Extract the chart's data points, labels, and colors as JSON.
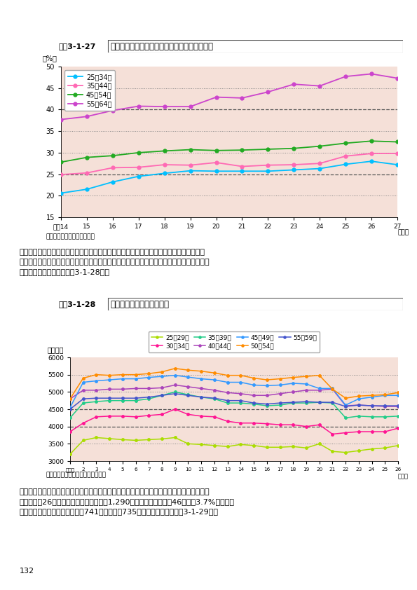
{
  "chart1": {
    "title_box": "図表3-1-27",
    "title_text": "年齢階級別非正規の職員・従業員の割合の推移",
    "ylabel": "（%）",
    "source": "資料：総務省「労働力調査」",
    "ylim": [
      15,
      50
    ],
    "yticks": [
      15,
      20,
      25,
      30,
      35,
      40,
      45,
      50
    ],
    "xlabels": [
      "平成14",
      "15",
      "16",
      "17",
      "18",
      "19",
      "20",
      "21",
      "22",
      "23",
      "24",
      "25",
      "26",
      "27"
    ],
    "xvals": [
      14,
      15,
      16,
      17,
      18,
      19,
      20,
      21,
      22,
      23,
      24,
      25,
      26,
      27
    ],
    "year_label": "（年）",
    "series_order": [
      "25〜34歳",
      "35〜44歳",
      "45〜54歳",
      "55〜64歳"
    ],
    "series": {
      "25〜34歳": {
        "color": "#00BFFF",
        "values": [
          20.6,
          21.5,
          23.2,
          24.5,
          25.2,
          25.8,
          25.7,
          25.7,
          25.7,
          26.0,
          26.3,
          27.3,
          28.0,
          27.2
        ]
      },
      "35〜44歳": {
        "color": "#FF69B4",
        "values": [
          24.9,
          25.3,
          26.5,
          26.6,
          27.2,
          27.1,
          27.7,
          26.8,
          27.1,
          27.2,
          27.5,
          29.2,
          29.8,
          29.8
        ]
      },
      "45〜54歳": {
        "color": "#22AA22",
        "values": [
          27.8,
          28.9,
          29.3,
          30.0,
          30.4,
          30.7,
          30.5,
          30.6,
          30.8,
          31.0,
          31.5,
          32.2,
          32.7,
          32.5
        ]
      },
      "55〜64歳": {
        "color": "#CC44CC",
        "values": [
          37.7,
          38.4,
          39.8,
          40.8,
          40.7,
          40.7,
          42.9,
          42.7,
          44.1,
          45.9,
          45.5,
          47.7,
          48.3,
          47.3
        ]
      }
    },
    "bg_color": "#F5E0D8",
    "plot_bg": "#F5E0D8",
    "grid_dashed": [
      25,
      40
    ],
    "grid_dotted": [
      20,
      30,
      35,
      45
    ]
  },
  "chart2": {
    "title_box": "図表3-1-28",
    "title_text": "年齢階級別平均給与の推移",
    "ylabel": "（千円）",
    "source": "資料：国税庁「民間給与実態調査」",
    "ylim": [
      3000,
      6000
    ],
    "yticks": [
      3000,
      3500,
      4000,
      4500,
      5000,
      5500,
      6000
    ],
    "xlabels": [
      "平成元",
      "2",
      "3",
      "4",
      "5",
      "6",
      "7",
      "8",
      "9",
      "10",
      "11",
      "12",
      "13",
      "14",
      "15",
      "16",
      "17",
      "18",
      "19",
      "20",
      "21",
      "22",
      "23",
      "24",
      "25",
      "26"
    ],
    "xvals": [
      1,
      2,
      3,
      4,
      5,
      6,
      7,
      8,
      9,
      10,
      11,
      12,
      13,
      14,
      15,
      16,
      17,
      18,
      19,
      20,
      21,
      22,
      23,
      24,
      25,
      26
    ],
    "year_label": "（年）",
    "series_order": [
      "25〜29歳",
      "30〜34歳",
      "35〜39歳",
      "40〜44歳",
      "45〜49歳",
      "50〜54歳",
      "55〜59歳"
    ],
    "series": {
      "25〜29歳": {
        "color": "#AADD00",
        "values": [
          3200,
          3600,
          3680,
          3650,
          3620,
          3600,
          3620,
          3640,
          3680,
          3500,
          3480,
          3450,
          3420,
          3480,
          3450,
          3400,
          3400,
          3420,
          3380,
          3500,
          3280,
          3250,
          3300,
          3350,
          3380,
          3450
        ]
      },
      "30〜34歳": {
        "color": "#FF1493",
        "values": [
          3850,
          4100,
          4280,
          4300,
          4300,
          4280,
          4320,
          4350,
          4500,
          4350,
          4300,
          4280,
          4150,
          4100,
          4100,
          4080,
          4050,
          4050,
          4000,
          4050,
          3780,
          3820,
          3850,
          3850,
          3850,
          3950
        ]
      },
      "35〜39歳": {
        "color": "#22CC88",
        "values": [
          4250,
          4680,
          4720,
          4750,
          4750,
          4750,
          4800,
          4900,
          5000,
          4920,
          4850,
          4800,
          4680,
          4680,
          4650,
          4600,
          4620,
          4680,
          4680,
          4700,
          4680,
          4250,
          4300,
          4280,
          4280,
          4300
        ]
      },
      "40〜44歳": {
        "color": "#AA44BB",
        "values": [
          4800,
          5050,
          5050,
          5080,
          5080,
          5100,
          5100,
          5120,
          5200,
          5150,
          5100,
          5050,
          4980,
          4950,
          4900,
          4900,
          4950,
          5000,
          5050,
          5050,
          5080,
          4600,
          4620,
          4600,
          4580,
          4580
        ]
      },
      "45〜49歳": {
        "color": "#3399FF",
        "values": [
          4550,
          5280,
          5320,
          5350,
          5380,
          5380,
          5420,
          5450,
          5480,
          5430,
          5380,
          5350,
          5280,
          5280,
          5200,
          5180,
          5200,
          5250,
          5230,
          5100,
          5100,
          4620,
          4800,
          4850,
          4900,
          4900
        ]
      },
      "50〜54歳": {
        "color": "#FF8C00",
        "values": [
          4800,
          5400,
          5500,
          5480,
          5500,
          5500,
          5530,
          5580,
          5680,
          5630,
          5600,
          5550,
          5480,
          5480,
          5400,
          5350,
          5380,
          5420,
          5450,
          5480,
          5080,
          4820,
          4880,
          4900,
          4920,
          4980
        ]
      },
      "55〜59歳": {
        "color": "#4455CC",
        "values": [
          4500,
          4800,
          4820,
          4820,
          4820,
          4820,
          4850,
          4900,
          4950,
          4900,
          4850,
          4820,
          4750,
          4750,
          4680,
          4650,
          4680,
          4700,
          4720,
          4700,
          4700,
          4580,
          4620,
          4600,
          4600,
          4600
        ]
      }
    },
    "bg_color": "#F5E0D8",
    "grid_dashed": [
      4000,
      4500
    ],
    "grid_dotted": [
      3500,
      5000,
      5500
    ]
  },
  "body_text1_lines": [
    "　所得の状況について、国税庁「民間給与実態調査」により年代別平均給与の推移をみる",
    "と、足下では持ち直しの動きがみられるものの、総じて平均給与は平成９年頃と比較すると",
    "大きく減少している（図表3-1-28）。"
  ],
  "body_text2_lines": [
    "　貯蓄の状況について、年代別貯蓄（二人以上の世帯のうち勤労者世帯の貯蓄）の推移をみ",
    "ると、平成26年の貯蓄現在高の平均値は1,290万円で、前年に比べ46万円と3.7%の増加と",
    "なり、貯蓄保有世帯の中央値は741万円（前年735万円）となった（図表3-1-29）。"
  ],
  "page_number": "132",
  "outer_bg": "#FFFFFF"
}
